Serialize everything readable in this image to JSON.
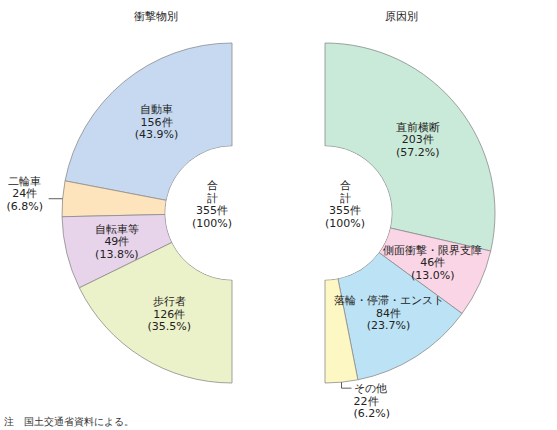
{
  "chart_data": [
    {
      "type": "pie",
      "title": "衝撃物別",
      "categories": [
        "自動車",
        "二輪車",
        "自転車等",
        "歩行者"
      ],
      "values": [
        156,
        24,
        49,
        126
      ],
      "value_labels": [
        "156件",
        "24件",
        "49件",
        "126件"
      ],
      "percents": [
        43.9,
        6.8,
        13.8,
        35.5
      ],
      "percent_labels": [
        "(43.9%)",
        "(6.8%)",
        "(13.8%)",
        "(35.5%)"
      ],
      "colors": [
        "#c6d9f1",
        "#fde4bd",
        "#e8d4ea",
        "#ebf1c8"
      ],
      "data_labels": true,
      "total_title": "合計",
      "total": 355,
      "total_label": "355件",
      "total_percent": 100,
      "total_percent_label": "(100%)"
    },
    {
      "type": "pie",
      "title": "原因別",
      "categories": [
        "直前横断",
        "側面衝撃・限界支障",
        "落輪・停滞・エンスト",
        "その他"
      ],
      "values": [
        203,
        46,
        84,
        22
      ],
      "value_labels": [
        "203件",
        "46件",
        "84件",
        "22件"
      ],
      "percents": [
        57.2,
        13.0,
        23.7,
        6.2
      ],
      "percent_labels": [
        "(57.2%)",
        "(13.0%)",
        "(23.7%)",
        "(6.2%)"
      ],
      "colors": [
        "#c9e9d9",
        "#f9d5e5",
        "#bce2f5",
        "#fdf7c3"
      ],
      "data_labels": true,
      "total_title": "合計",
      "total": 355,
      "total_label": "355件",
      "total_percent": 100,
      "total_percent_label": "(100%)"
    }
  ],
  "note": "注　国土交通省資料による。"
}
